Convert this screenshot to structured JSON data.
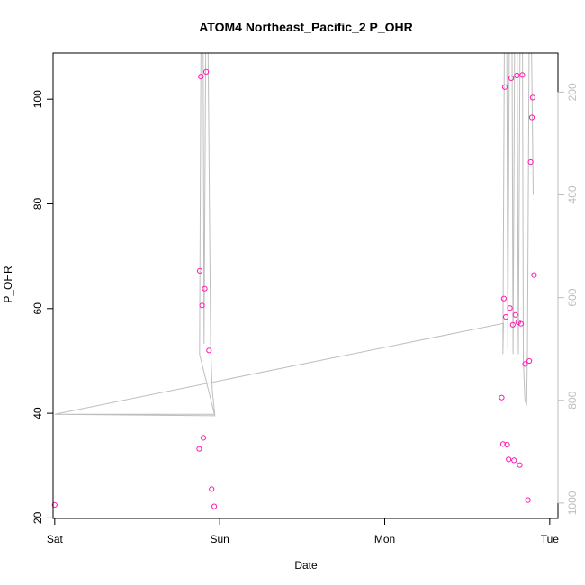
{
  "chart_data": {
    "type": "scatter",
    "title": "ATOM4 Northeast_Pacific_2 P_OHR",
    "xlabel": "Date",
    "ylabel": "P_OHR",
    "x_unit": "days since Sat 00:00",
    "xlim": [
      -0.01,
      3.05
    ],
    "ylim": [
      19.9,
      108.8
    ],
    "x_ticks": [
      {
        "value": 0,
        "label": "Sat"
      },
      {
        "value": 1,
        "label": "Sun"
      },
      {
        "value": 2,
        "label": "Mon"
      },
      {
        "value": 3,
        "label": "Tue"
      }
    ],
    "y_ticks": [
      20,
      40,
      60,
      80,
      100
    ],
    "y2_ticks": [
      200,
      400,
      600,
      800,
      1000
    ],
    "y2lim": [
      1030,
      124
    ],
    "point_color": "#ff1cae",
    "line_color": "#bebebe",
    "points": [
      {
        "x": 0.0,
        "y": 22.5
      },
      {
        "x": 0.876,
        "y": 33.2
      },
      {
        "x": 0.879,
        "y": 67.2
      },
      {
        "x": 0.886,
        "y": 104.3
      },
      {
        "x": 0.893,
        "y": 60.6
      },
      {
        "x": 0.901,
        "y": 35.3
      },
      {
        "x": 0.909,
        "y": 63.8
      },
      {
        "x": 0.918,
        "y": 105.2
      },
      {
        "x": 0.935,
        "y": 52.0
      },
      {
        "x": 0.951,
        "y": 25.5
      },
      {
        "x": 0.967,
        "y": 22.2
      },
      {
        "x": 2.709,
        "y": 43.0
      },
      {
        "x": 2.717,
        "y": 34.1
      },
      {
        "x": 2.722,
        "y": 61.9
      },
      {
        "x": 2.728,
        "y": 102.3
      },
      {
        "x": 2.734,
        "y": 58.4
      },
      {
        "x": 2.742,
        "y": 34.0
      },
      {
        "x": 2.751,
        "y": 31.2
      },
      {
        "x": 2.759,
        "y": 60.1
      },
      {
        "x": 2.767,
        "y": 104.0
      },
      {
        "x": 2.776,
        "y": 56.9
      },
      {
        "x": 2.784,
        "y": 31.0
      },
      {
        "x": 2.792,
        "y": 58.8
      },
      {
        "x": 2.801,
        "y": 104.5
      },
      {
        "x": 2.809,
        "y": 57.4
      },
      {
        "x": 2.818,
        "y": 30.1
      },
      {
        "x": 2.826,
        "y": 57.1
      },
      {
        "x": 2.834,
        "y": 104.6
      },
      {
        "x": 2.851,
        "y": 49.4
      },
      {
        "x": 2.868,
        "y": 23.4
      },
      {
        "x": 2.876,
        "y": 50.0
      },
      {
        "x": 2.884,
        "y": 88.0
      },
      {
        "x": 2.892,
        "y": 96.5
      },
      {
        "x": 2.897,
        "y": 100.3
      },
      {
        "x": 2.905,
        "y": 66.4
      }
    ],
    "depth_line": [
      {
        "x": 0.0,
        "y2": 827
      },
      {
        "x": 0.97,
        "y2": 827
      },
      {
        "x": 0.955,
        "y2": 780
      },
      {
        "x": 0.95,
        "y2": 740
      },
      {
        "x": 0.945,
        "y2": 690
      },
      {
        "x": 0.93,
        "y2": 124
      },
      {
        "x": 0.915,
        "y2": 124
      },
      {
        "x": 0.905,
        "y2": 690
      },
      {
        "x": 0.9,
        "y2": 124
      },
      {
        "x": 0.886,
        "y2": 124
      },
      {
        "x": 0.878,
        "y2": 710
      },
      {
        "x": 0.878,
        "y2": 710
      },
      {
        "x": 0.97,
        "y2": 830
      },
      {
        "x": 0.0,
        "y2": 827
      },
      {
        "x": 2.72,
        "y2": 650
      },
      {
        "x": 2.716,
        "y2": 710
      },
      {
        "x": 2.725,
        "y2": 124
      },
      {
        "x": 2.74,
        "y2": 124
      },
      {
        "x": 2.746,
        "y2": 700
      },
      {
        "x": 2.755,
        "y2": 124
      },
      {
        "x": 2.772,
        "y2": 124
      },
      {
        "x": 2.778,
        "y2": 710
      },
      {
        "x": 2.787,
        "y2": 124
      },
      {
        "x": 2.803,
        "y2": 124
      },
      {
        "x": 2.81,
        "y2": 710
      },
      {
        "x": 2.82,
        "y2": 124
      },
      {
        "x": 2.835,
        "y2": 124
      },
      {
        "x": 2.84,
        "y2": 720
      },
      {
        "x": 2.85,
        "y2": 800
      },
      {
        "x": 2.86,
        "y2": 810
      },
      {
        "x": 2.865,
        "y2": 700
      },
      {
        "x": 2.875,
        "y2": 124
      },
      {
        "x": 2.89,
        "y2": 124
      },
      {
        "x": 2.9,
        "y2": 400
      }
    ]
  }
}
